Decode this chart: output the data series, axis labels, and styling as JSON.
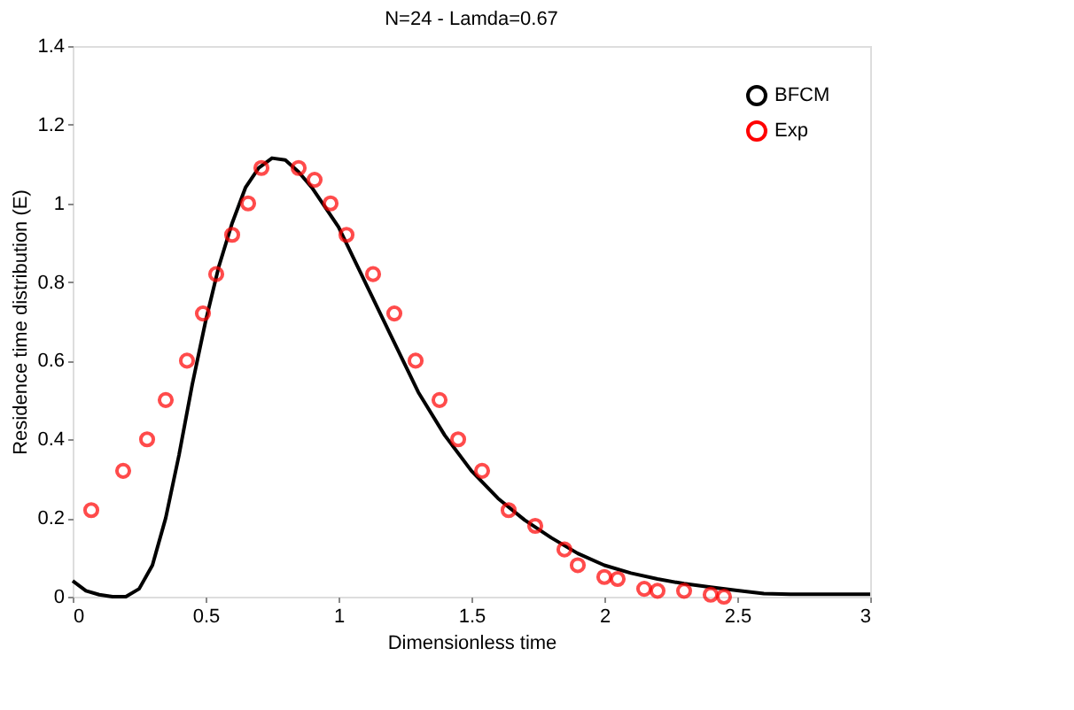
{
  "chart_data": {
    "type": "line",
    "title": "N=24 - Lamda=0.67",
    "xlabel": "Dimensionless time",
    "ylabel": "Residence time distribution (E)",
    "xlim": [
      0,
      3
    ],
    "xticks": [
      0,
      0.5,
      1,
      1.5,
      2,
      2.5,
      3
    ],
    "ylim": [
      0,
      1.4
    ],
    "yticks": [
      0,
      0.2,
      0.4,
      0.6,
      0.8,
      1,
      1.2,
      1.4
    ],
    "grid": false,
    "legend": "top right",
    "series": [
      {
        "name": "BFCM",
        "color": "#000000",
        "line_style": "solid",
        "marker": "none",
        "x": [
          0,
          0.05,
          0.1,
          0.15,
          0.2,
          0.25,
          0.3,
          0.35,
          0.4,
          0.45,
          0.5,
          0.55,
          0.6,
          0.65,
          0.7,
          0.75,
          0.8,
          0.85,
          0.9,
          0.95,
          1.0,
          1.1,
          1.2,
          1.3,
          1.4,
          1.5,
          1.6,
          1.7,
          1.8,
          1.9,
          2.0,
          2.1,
          2.2,
          2.3,
          2.4,
          2.5,
          2.6,
          2.7,
          2.8,
          3.0
        ],
        "values": [
          0.04,
          0.015,
          0.005,
          0.0,
          0.0,
          0.02,
          0.08,
          0.2,
          0.36,
          0.54,
          0.7,
          0.84,
          0.95,
          1.04,
          1.09,
          1.115,
          1.11,
          1.08,
          1.04,
          0.99,
          0.94,
          0.8,
          0.66,
          0.52,
          0.41,
          0.32,
          0.25,
          0.195,
          0.15,
          0.11,
          0.08,
          0.06,
          0.045,
          0.033,
          0.024,
          0.016,
          0.008,
          0.006,
          0.006,
          0.006
        ]
      },
      {
        "name": "Exp",
        "type": "scatter",
        "color": "#ff0000",
        "marker": "circle",
        "x": [
          0.07,
          0.19,
          0.28,
          0.35,
          0.43,
          0.49,
          0.54,
          0.6,
          0.66,
          0.71,
          0.85,
          0.91,
          0.97,
          1.03,
          1.13,
          1.21,
          1.29,
          1.38,
          1.45,
          1.54,
          1.64,
          1.74,
          1.85,
          1.9,
          2.0,
          2.05,
          2.15,
          2.2,
          2.3,
          2.4,
          2.45
        ],
        "values": [
          0.22,
          0.32,
          0.4,
          0.5,
          0.6,
          0.72,
          0.82,
          0.92,
          1.0,
          1.09,
          1.09,
          1.06,
          1.0,
          0.92,
          0.82,
          0.72,
          0.6,
          0.5,
          0.4,
          0.32,
          0.22,
          0.18,
          0.12,
          0.08,
          0.05,
          0.045,
          0.02,
          0.015,
          0.015,
          0.005,
          0.0
        ]
      }
    ]
  }
}
